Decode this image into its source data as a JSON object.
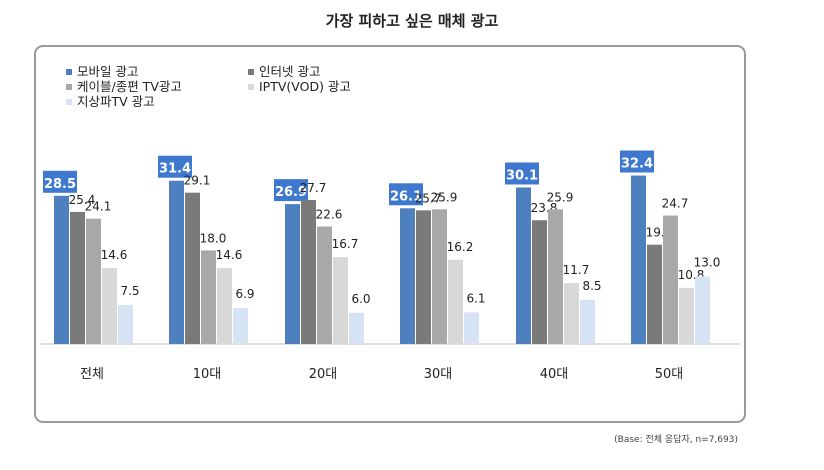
{
  "title": "가장 피하고 싶은 매체 광고",
  "note": "(Base: 전체 응답자, n=7,693)",
  "colors": {
    "mobile": "#4e7fbf",
    "internet": "#7a7a7a",
    "cable": "#a8a8a8",
    "iptv": "#d8d8d8",
    "terrestrial": "#d6e3f5",
    "highlight_bg": "#3f79cf",
    "highlight_text": "#ffffff"
  },
  "chart_data": {
    "type": "bar",
    "title": "가장 피하고 싶은 매체 광고",
    "categories": [
      "전체",
      "10대",
      "20대",
      "30대",
      "40대",
      "50대"
    ],
    "series": [
      {
        "name": "모바일 광고",
        "values": [
          28.5,
          31.4,
          26.9,
          26.1,
          30.1,
          32.4
        ]
      },
      {
        "name": "인터넷 광고",
        "values": [
          25.4,
          29.1,
          27.7,
          25.7,
          23.8,
          19.1
        ]
      },
      {
        "name": "케이블/종편 TV광고",
        "values": [
          24.1,
          18.0,
          22.6,
          25.9,
          25.9,
          24.7
        ]
      },
      {
        "name": "IPTV(VOD) 광고",
        "values": [
          14.6,
          14.6,
          16.7,
          16.2,
          11.7,
          10.8
        ]
      },
      {
        "name": "지상파TV 광고",
        "values": [
          7.5,
          6.9,
          6.0,
          6.1,
          8.5,
          13.0
        ]
      }
    ],
    "value_labels": [
      [
        "28.5",
        "25.4",
        "24.1",
        "14.6",
        "7.5"
      ],
      [
        "31.4",
        "29.1",
        "18.0",
        "14.6",
        "6.9"
      ],
      [
        "26.9",
        "27.7",
        "22.6",
        "16.7",
        "6.0"
      ],
      [
        "26.1",
        "25.7",
        "25.9",
        "16.2",
        "6.1"
      ],
      [
        "30.1",
        "23.8",
        "25.9",
        "11.7",
        "8.5"
      ],
      [
        "32.4",
        "19.1",
        "24.7",
        "10.8",
        "13.0"
      ]
    ],
    "highlighted_series": 0,
    "legend": "top-left",
    "grid": false
  }
}
